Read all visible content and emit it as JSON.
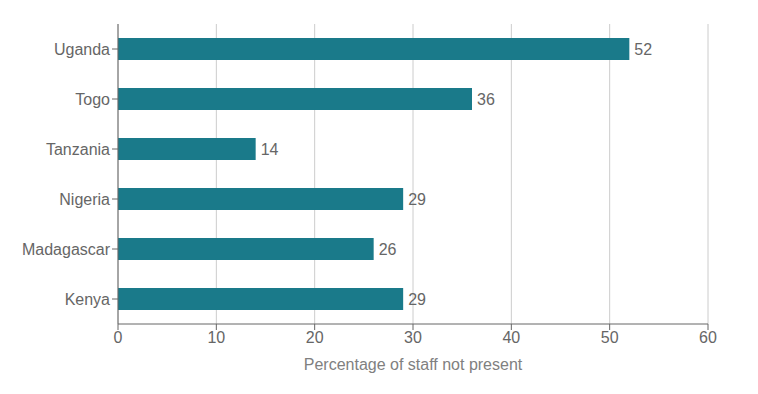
{
  "chart_data": {
    "type": "bar",
    "orientation": "horizontal",
    "categories": [
      "Uganda",
      "Togo",
      "Tanzania",
      "Nigeria",
      "Madagascar",
      "Kenya"
    ],
    "values": [
      52,
      36,
      14,
      29,
      26,
      29
    ],
    "color": "#1a7a8a",
    "xlabel": "Percentage of staff not present",
    "xlim": [
      0,
      60
    ],
    "xticks": [
      0,
      10,
      20,
      30,
      40,
      50,
      60
    ],
    "grid": true,
    "data_labels": true
  }
}
